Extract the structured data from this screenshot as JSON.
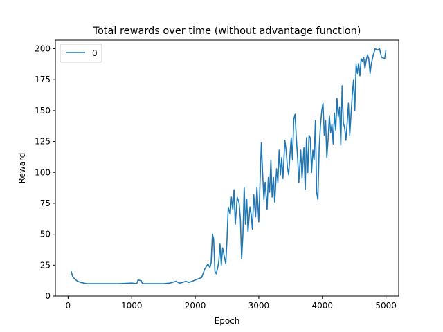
{
  "chart_data": {
    "type": "line",
    "title": "Total rewards over time (without advantage function)",
    "xlabel": "Epoch",
    "ylabel": "Reward",
    "xlim": [
      -200,
      5200
    ],
    "ylim": [
      0,
      207
    ],
    "xticks": [
      0,
      1000,
      2000,
      3000,
      4000,
      5000
    ],
    "yticks": [
      0,
      25,
      50,
      75,
      100,
      125,
      150,
      175,
      200
    ],
    "grid": false,
    "legend": {
      "location": "upper left",
      "entries": [
        "0"
      ]
    },
    "color": "#1f77b4",
    "series": [
      {
        "name": "0",
        "points": [
          [
            50,
            20
          ],
          [
            70,
            16
          ],
          [
            100,
            14
          ],
          [
            150,
            12
          ],
          [
            200,
            11
          ],
          [
            300,
            10
          ],
          [
            500,
            10
          ],
          [
            800,
            10
          ],
          [
            1000,
            10.5
          ],
          [
            1080,
            10
          ],
          [
            1100,
            13
          ],
          [
            1150,
            12.5
          ],
          [
            1170,
            10
          ],
          [
            1300,
            10
          ],
          [
            1500,
            10
          ],
          [
            1600,
            10.5
          ],
          [
            1700,
            12
          ],
          [
            1750,
            10.5
          ],
          [
            1800,
            11
          ],
          [
            1850,
            12
          ],
          [
            1900,
            11
          ],
          [
            1950,
            12
          ],
          [
            2000,
            13
          ],
          [
            2050,
            14
          ],
          [
            2100,
            15
          ],
          [
            2150,
            22
          ],
          [
            2200,
            26
          ],
          [
            2230,
            23
          ],
          [
            2250,
            27
          ],
          [
            2270,
            50
          ],
          [
            2290,
            46
          ],
          [
            2310,
            20
          ],
          [
            2330,
            18
          ],
          [
            2350,
            22
          ],
          [
            2370,
            28
          ],
          [
            2390,
            42
          ],
          [
            2410,
            25
          ],
          [
            2430,
            39
          ],
          [
            2450,
            34
          ],
          [
            2480,
            26
          ],
          [
            2500,
            46
          ],
          [
            2520,
            72
          ],
          [
            2550,
            66
          ],
          [
            2570,
            80
          ],
          [
            2590,
            70
          ],
          [
            2610,
            86
          ],
          [
            2630,
            58
          ],
          [
            2660,
            80
          ],
          [
            2690,
            75
          ],
          [
            2710,
            62
          ],
          [
            2730,
            30
          ],
          [
            2750,
            50
          ],
          [
            2770,
            88
          ],
          [
            2790,
            58
          ],
          [
            2810,
            78
          ],
          [
            2830,
            52
          ],
          [
            2860,
            72
          ],
          [
            2880,
            66
          ],
          [
            2900,
            54
          ],
          [
            2920,
            82
          ],
          [
            2950,
            64
          ],
          [
            2970,
            88
          ],
          [
            3000,
            60
          ],
          [
            3020,
            94
          ],
          [
            3040,
            124
          ],
          [
            3060,
            100
          ],
          [
            3080,
            78
          ],
          [
            3100,
            92
          ],
          [
            3130,
            70
          ],
          [
            3150,
            96
          ],
          [
            3170,
            84
          ],
          [
            3190,
            110
          ],
          [
            3210,
            80
          ],
          [
            3230,
            96
          ],
          [
            3250,
            76
          ],
          [
            3280,
            103
          ],
          [
            3300,
            92
          ],
          [
            3320,
            118
          ],
          [
            3340,
            98
          ],
          [
            3360,
            112
          ],
          [
            3380,
            95
          ],
          [
            3410,
            126
          ],
          [
            3430,
            118
          ],
          [
            3450,
            104
          ],
          [
            3470,
            98
          ],
          [
            3490,
            114
          ],
          [
            3510,
            128
          ],
          [
            3530,
            110
          ],
          [
            3550,
            143
          ],
          [
            3570,
            147
          ],
          [
            3590,
            128
          ],
          [
            3610,
            112
          ],
          [
            3630,
            92
          ],
          [
            3660,
            118
          ],
          [
            3680,
            95
          ],
          [
            3710,
            120
          ],
          [
            3730,
            86
          ],
          [
            3750,
            128
          ],
          [
            3770,
            100
          ],
          [
            3790,
            130
          ],
          [
            3810,
            128
          ],
          [
            3830,
            100
          ],
          [
            3850,
            118
          ],
          [
            3870,
            110
          ],
          [
            3890,
            142
          ],
          [
            3910,
            84
          ],
          [
            3930,
            78
          ],
          [
            3950,
            120
          ],
          [
            3970,
            138
          ],
          [
            3990,
            150
          ],
          [
            4010,
            156
          ],
          [
            4030,
            130
          ],
          [
            4050,
            142
          ],
          [
            4070,
            112
          ],
          [
            4090,
            126
          ],
          [
            4110,
            146
          ],
          [
            4130,
            132
          ],
          [
            4150,
            139
          ],
          [
            4170,
            123
          ],
          [
            4190,
            148
          ],
          [
            4210,
            134
          ],
          [
            4230,
            160
          ],
          [
            4250,
            145
          ],
          [
            4270,
            153
          ],
          [
            4290,
            122
          ],
          [
            4310,
            170
          ],
          [
            4330,
            140
          ],
          [
            4350,
            136
          ],
          [
            4370,
            126
          ],
          [
            4390,
            140
          ],
          [
            4410,
            156
          ],
          [
            4430,
            130
          ],
          [
            4450,
            146
          ],
          [
            4470,
            162
          ],
          [
            4490,
            175
          ],
          [
            4510,
            150
          ],
          [
            4530,
            187
          ],
          [
            4550,
            180
          ],
          [
            4570,
            188
          ],
          [
            4590,
            178
          ],
          [
            4610,
            192
          ],
          [
            4630,
            190
          ],
          [
            4650,
            193
          ],
          [
            4670,
            184
          ],
          [
            4690,
            191
          ],
          [
            4710,
            195
          ],
          [
            4730,
            192
          ],
          [
            4750,
            180
          ],
          [
            4770,
            188
          ],
          [
            4800,
            195
          ],
          [
            4830,
            200
          ],
          [
            4870,
            199
          ],
          [
            4900,
            200
          ],
          [
            4930,
            193
          ],
          [
            4980,
            192
          ],
          [
            5000,
            199
          ]
        ]
      }
    ]
  }
}
